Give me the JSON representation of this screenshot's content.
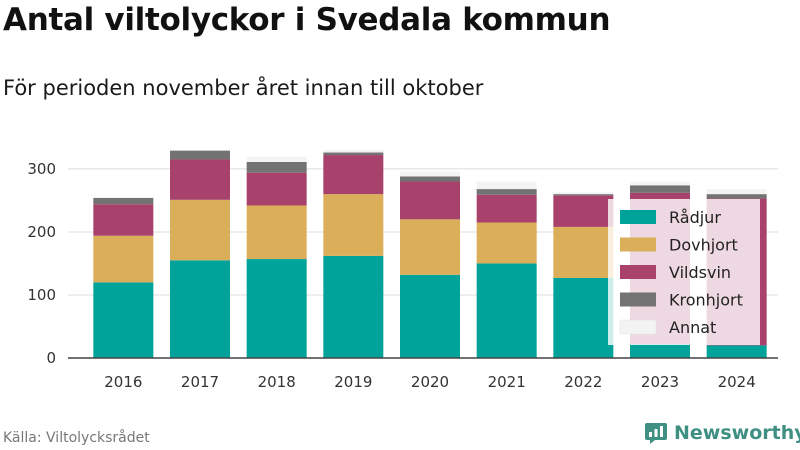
{
  "title": "Antal viltolyckor i Svedala kommun",
  "subtitle": "För perioden november året innan till oktober",
  "source": "Källa: Viltolycksrådet",
  "brand": {
    "name": "Newsworthy",
    "icon": "bar-chart-speech-bubble-icon",
    "color": "#3f8f83"
  },
  "chart_data": {
    "type": "bar",
    "stacked": true,
    "title": "Antal viltolyckor i Svedala kommun",
    "subtitle": "För perioden november året innan till oktober",
    "categories": [
      "2016",
      "2017",
      "2018",
      "2019",
      "2020",
      "2021",
      "2022",
      "2023",
      "2024"
    ],
    "series": [
      {
        "name": "Rådjur",
        "color": "#00a39a",
        "values": [
          120,
          155,
          157,
          162,
          132,
          150,
          127,
          22,
          20
        ]
      },
      {
        "name": "Dovhjort",
        "color": "#dbae5a",
        "values": [
          74,
          96,
          85,
          98,
          88,
          65,
          81,
          0,
          0
        ]
      },
      {
        "name": "Vildsvin",
        "color": "#a8426d",
        "values": [
          50,
          64,
          52,
          62,
          60,
          44,
          50,
          240,
          233
        ]
      },
      {
        "name": "Kronhjort",
        "color": "#737373",
        "values": [
          10,
          14,
          17,
          4,
          8,
          9,
          2,
          12,
          7
        ]
      },
      {
        "name": "Annat",
        "color": "#f3f3f3",
        "values": [
          0,
          0,
          8,
          4,
          8,
          12,
          3,
          6,
          8
        ]
      }
    ],
    "xlabel": "",
    "ylabel": "",
    "ylim": [
      0,
      330
    ],
    "yticks": [
      0,
      100,
      200,
      300
    ],
    "grid": true,
    "legend": "right"
  }
}
